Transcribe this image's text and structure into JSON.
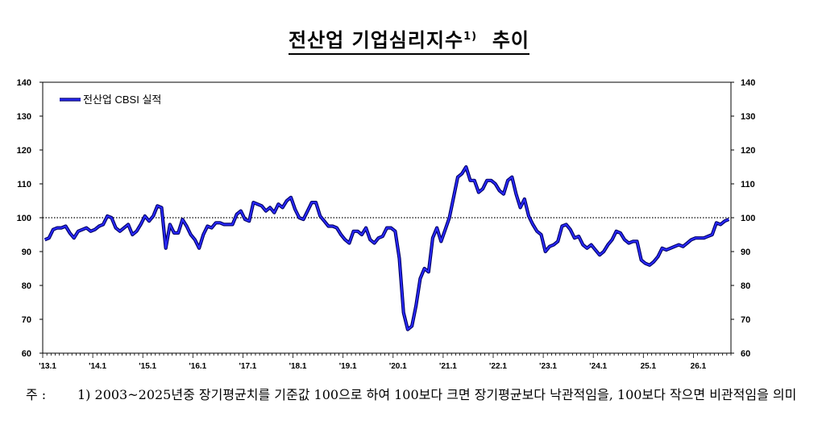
{
  "title": "전산업 기업심리지수",
  "title_sup": "1)",
  "title_suffix": "추이",
  "note_label": "주 :",
  "note_text": "1) 2003~2025년중 장기평균치를 기준값 100으로 하여 100보다 크면 장기평균보다 낙관적임을, 100보다 작으면 비관적임을 의미",
  "chart_data": {
    "type": "line",
    "title": "전산업 기업심리지수 추이",
    "legend": {
      "position": "top-left",
      "entries": [
        "전산업 CBSI 실적"
      ]
    },
    "ylim": [
      60,
      140
    ],
    "yticks": [
      60,
      70,
      80,
      90,
      100,
      110,
      120,
      130,
      140
    ],
    "reference_line": {
      "y": 100,
      "style": "dotted"
    },
    "x_tick_labels": [
      "'13.1",
      "'14.1",
      "'15.1",
      "'16.1",
      "'17.1",
      "'18.1",
      "'19.1",
      "'20.1",
      "'21.1",
      "'22.1",
      "'23.1",
      "'24.1",
      "25.1",
      "26.1"
    ],
    "x_start": "2013-01",
    "x_end": "2026-09",
    "series": [
      {
        "name": "전산업 CBSI 실적",
        "color": "#1a1aff",
        "values": [
          93.5,
          94.0,
          96.5,
          97.0,
          97.0,
          97.5,
          95.5,
          94.0,
          96.0,
          96.5,
          97.0,
          96.0,
          96.5,
          97.5,
          98.0,
          100.5,
          100.0,
          97.0,
          96.0,
          97.0,
          98.0,
          95.0,
          96.0,
          98.0,
          100.5,
          99.0,
          100.5,
          103.5,
          103.0,
          91.0,
          98.0,
          95.5,
          95.5,
          99.5,
          97.5,
          95.0,
          93.5,
          91.0,
          95.0,
          97.5,
          97.0,
          98.5,
          98.5,
          98.0,
          98.0,
          98.0,
          101.0,
          102.0,
          99.5,
          99.0,
          104.5,
          104.0,
          103.5,
          102.0,
          103.0,
          101.5,
          104.0,
          103.0,
          105.0,
          106.0,
          102.5,
          100.0,
          99.5,
          102.0,
          104.5,
          104.5,
          100.5,
          99.0,
          97.5,
          97.5,
          97.0,
          95.0,
          93.5,
          92.5,
          96.0,
          96.0,
          95.0,
          97.0,
          93.5,
          92.5,
          94.0,
          94.5,
          97.0,
          97.0,
          96.0,
          88.0,
          72.0,
          67.0,
          68.0,
          74.0,
          82.0,
          85.0,
          84.0,
          94.0,
          97.0,
          93.0,
          96.5,
          100.0,
          106.0,
          112.0,
          113.0,
          115.0,
          111.0,
          111.0,
          107.5,
          108.5,
          111.0,
          111.0,
          110.0,
          108.0,
          107.0,
          111.0,
          112.0,
          107.0,
          103.0,
          105.5,
          100.5,
          98.0,
          96.0,
          95.0,
          90.0,
          91.5,
          92.0,
          93.0,
          97.5,
          98.0,
          96.5,
          94.0,
          94.5,
          92.0,
          91.0,
          92.0,
          90.5,
          89.0,
          90.0,
          92.0,
          93.5,
          96.0,
          95.5,
          93.5,
          92.5,
          93.0,
          93.0,
          87.5,
          86.5,
          86.0,
          87.0,
          88.5,
          91.0,
          90.5,
          91.0,
          91.5,
          92.0,
          91.5,
          92.5,
          93.5,
          94.0,
          94.0,
          94.0,
          94.5,
          95.0,
          98.5,
          98.0,
          99.0,
          99.5
        ]
      }
    ]
  }
}
